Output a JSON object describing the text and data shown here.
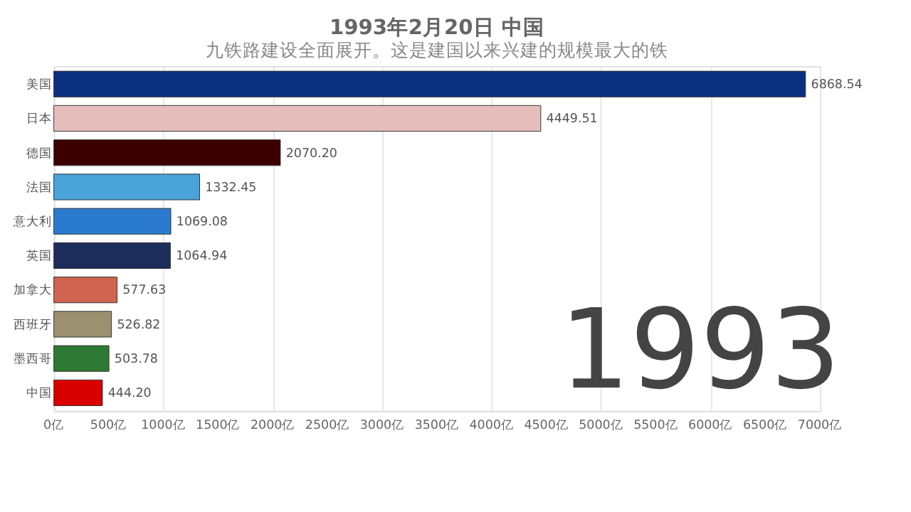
{
  "chart_data": {
    "type": "bar",
    "orientation": "horizontal",
    "title": "1993年2月20日 中国",
    "subtitle": "九铁路建设全面展开。这是建国以来兴建的规模最大的铁",
    "categories": [
      "美国",
      "日本",
      "德国",
      "法国",
      "意大利",
      "英国",
      "加拿大",
      "西班牙",
      "墨西哥",
      "中国"
    ],
    "values": [
      6868.54,
      4449.51,
      2070.2,
      1332.45,
      1069.08,
      1064.94,
      577.63,
      526.82,
      503.78,
      444.2
    ],
    "value_labels": [
      "6868.54",
      "4449.51",
      "2070.20",
      "1332.45",
      "1069.08",
      "1064.94",
      "577.63",
      "526.82",
      "503.78",
      "444.20"
    ],
    "colors": [
      "#0a2f7e",
      "#e6bfbd",
      "#3d0000",
      "#4aa3d9",
      "#2a7bd0",
      "#1c2d5c",
      "#d06450",
      "#9b9070",
      "#2e7a34",
      "#d90000"
    ],
    "xlim": [
      0,
      7000
    ],
    "xticks": [
      {
        "value": 0,
        "label": "0亿"
      },
      {
        "value": 500,
        "label": "500亿"
      },
      {
        "value": 1000,
        "label": "1000亿"
      },
      {
        "value": 1500,
        "label": "1500亿"
      },
      {
        "value": 2000,
        "label": "2000亿"
      },
      {
        "value": 2500,
        "label": "2500亿"
      },
      {
        "value": 3000,
        "label": "3000亿"
      },
      {
        "value": 3500,
        "label": "3500亿"
      },
      {
        "value": 4000,
        "label": "4000亿"
      },
      {
        "value": 4500,
        "label": "4500亿"
      },
      {
        "value": 5000,
        "label": "5000亿"
      },
      {
        "value": 5500,
        "label": "5500亿"
      },
      {
        "value": 6000,
        "label": "6000亿"
      },
      {
        "value": 6500,
        "label": "6500亿"
      },
      {
        "value": 7000,
        "label": "7000亿"
      }
    ],
    "grid": "x",
    "annotations": [
      "1993"
    ]
  }
}
